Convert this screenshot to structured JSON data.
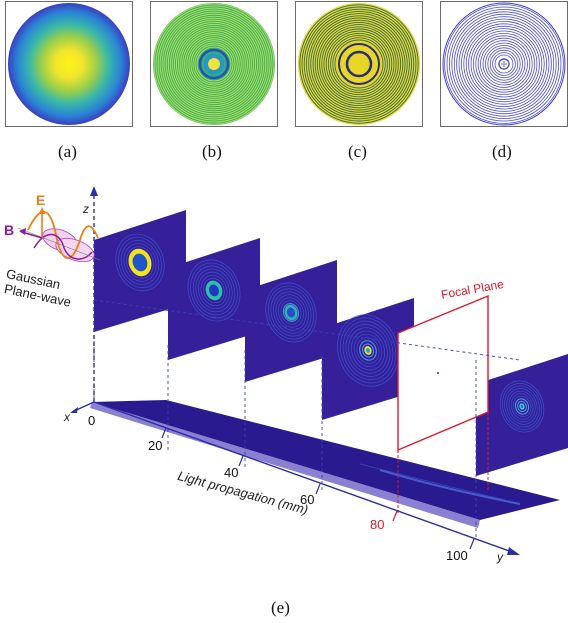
{
  "panels": [
    {
      "caption": "(a)",
      "variant": "smooth"
    },
    {
      "caption": "(b)",
      "variant": "fine-rings"
    },
    {
      "caption": "(c)",
      "variant": "yellow-rings"
    },
    {
      "caption": "(d)",
      "variant": "blue-lines"
    }
  ],
  "figure_e": {
    "caption": "(e)",
    "field_label": "E",
    "magnetic_label": "B",
    "source_label_line1": "Gaussian",
    "source_label_line2": "Plane-wave",
    "focal_plane_label": "Focal Plane",
    "axis_x": "x",
    "axis_y": "y",
    "axis_z": "z",
    "propagation_label": "Light propagation (mm)",
    "ticks": [
      "0",
      "20",
      "40",
      "60",
      "80",
      "100"
    ],
    "highlight_tick": "80",
    "colors": {
      "orange": "#f07c12",
      "purple": "#8e1c9e",
      "red": "#e0182c",
      "axis": "#2c2ea8",
      "field_bg": "#35209a"
    }
  }
}
